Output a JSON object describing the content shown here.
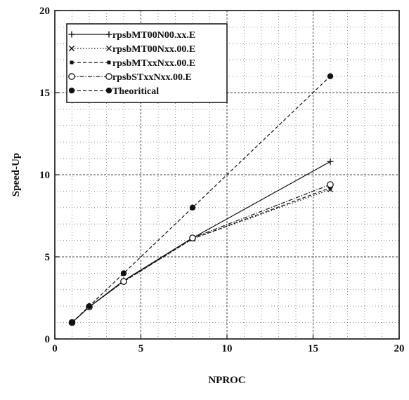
{
  "chart_data": {
    "type": "line",
    "xlabel": "NPROC",
    "ylabel": "Speed-Up",
    "xlim": [
      0,
      20
    ],
    "ylim": [
      0,
      20
    ],
    "xticks": [
      0,
      5,
      10,
      15,
      20
    ],
    "yticks": [
      0,
      5,
      10,
      15,
      20
    ],
    "grid": true,
    "legend_position": "top-left",
    "series": [
      {
        "name": "rpsbMT00N00.xx.E",
        "marker": "plus",
        "line": "solid",
        "x": [
          1,
          2,
          4,
          8,
          16
        ],
        "y": [
          1.0,
          1.95,
          3.55,
          6.15,
          10.8
        ]
      },
      {
        "name": "rpsbMT00Nxx.00.E",
        "marker": "cross",
        "line": "dotted",
        "x": [
          1,
          2,
          4,
          8,
          16
        ],
        "y": [
          1.0,
          1.95,
          3.5,
          6.1,
          9.1
        ]
      },
      {
        "name": "rpsbMTxxNxx.00.E",
        "marker": "filled-square",
        "line": "dashed",
        "x": [
          1,
          2,
          4,
          8,
          16
        ],
        "y": [
          1.0,
          1.95,
          3.5,
          6.1,
          9.2
        ]
      },
      {
        "name": "rpsbSTxxNxx.00.E",
        "marker": "open-circle",
        "line": "dash-dot",
        "x": [
          1,
          2,
          4,
          8,
          16
        ],
        "y": [
          1.0,
          1.95,
          3.5,
          6.15,
          9.4
        ]
      },
      {
        "name": "Theoritical",
        "marker": "filled-circle",
        "line": "dashed",
        "x": [
          1,
          2,
          4,
          8,
          16
        ],
        "y": [
          1,
          2,
          4,
          8,
          16
        ]
      }
    ]
  }
}
